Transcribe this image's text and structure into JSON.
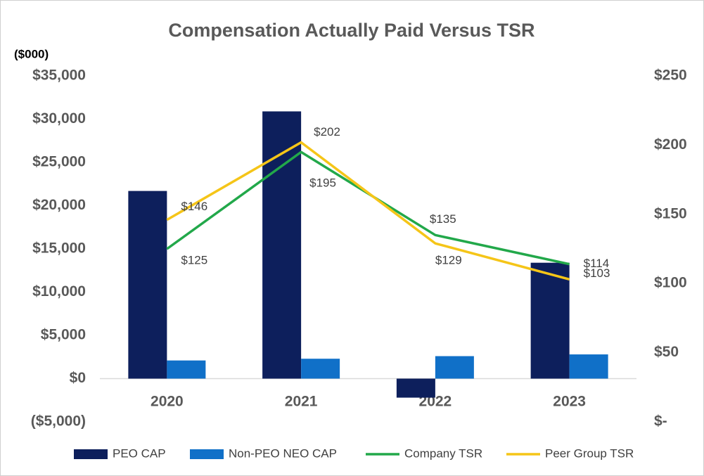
{
  "chart_data": {
    "type": "bar",
    "title": "Compensation Actually Paid Versus TSR",
    "y_axis_label": "($000)",
    "categories": [
      "2020",
      "2021",
      "2022",
      "2023"
    ],
    "series": [
      {
        "name": "PEO CAP",
        "type": "bar",
        "color": "#0d1f5c",
        "values": [
          21700,
          30900,
          -2200,
          13400
        ]
      },
      {
        "name": "Non-PEO NEO CAP",
        "type": "bar",
        "color": "#1070c8",
        "values": [
          2100,
          2300,
          2600,
          2800
        ]
      },
      {
        "name": "Company TSR",
        "type": "line",
        "axis": "y2",
        "color": "#22a84a",
        "values": [
          125,
          195,
          135,
          114
        ],
        "value_labels": [
          "$125",
          "$195",
          "$135",
          "$114"
        ]
      },
      {
        "name": "Peer Group TSR",
        "type": "line",
        "axis": "y2",
        "color": "#f5c518",
        "values": [
          146,
          202,
          129,
          103
        ],
        "value_labels": [
          "$146",
          "$202",
          "$129",
          "$103"
        ]
      }
    ],
    "ylim": [
      -5000,
      35000
    ],
    "yticks": [
      {
        "value": -5000,
        "label": "($5,000)"
      },
      {
        "value": 0,
        "label": "$0"
      },
      {
        "value": 5000,
        "label": "$5,000"
      },
      {
        "value": 10000,
        "label": "$10,000"
      },
      {
        "value": 15000,
        "label": "$15,000"
      },
      {
        "value": 20000,
        "label": "$20,000"
      },
      {
        "value": 25000,
        "label": "$25,000"
      },
      {
        "value": 30000,
        "label": "$30,000"
      },
      {
        "value": 35000,
        "label": "$35,000"
      }
    ],
    "y2lim": [
      0,
      250
    ],
    "y2ticks": [
      {
        "value": 0,
        "label": "$-"
      },
      {
        "value": 50,
        "label": "$50"
      },
      {
        "value": 100,
        "label": "$100"
      },
      {
        "value": 150,
        "label": "$150"
      },
      {
        "value": 200,
        "label": "$200"
      },
      {
        "value": 250,
        "label": "$250"
      }
    ],
    "legend": "bottom",
    "grid": false
  }
}
